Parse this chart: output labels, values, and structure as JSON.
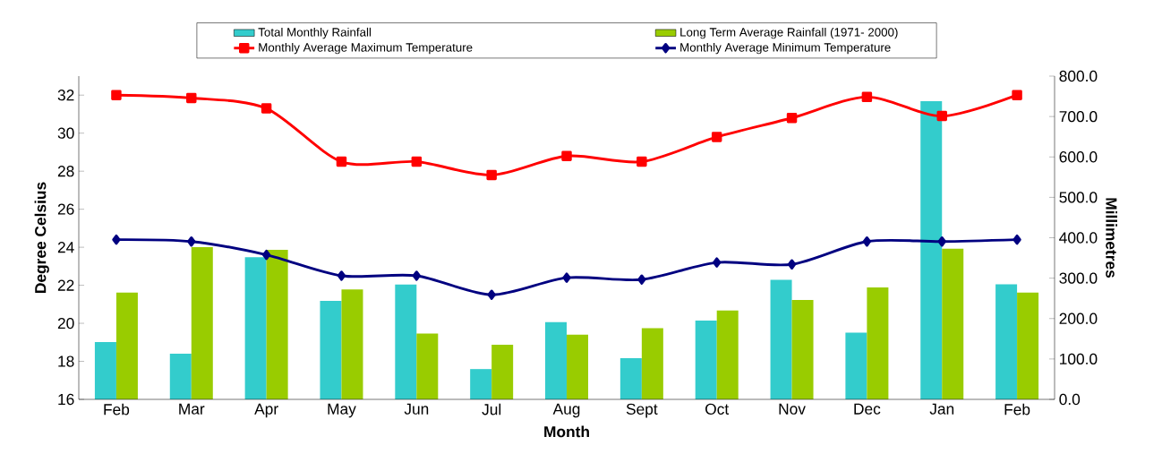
{
  "chart_data": {
    "type": "bar",
    "xlabel": "Month",
    "ylabel": "Degree Celsius",
    "y2label": "Millimetres",
    "categories": [
      "Feb",
      "Mar",
      "Apr",
      "May",
      "Jun",
      "Jul",
      "Aug",
      "Sept",
      "Oct",
      "Nov",
      "Dec",
      "Jan",
      "Feb"
    ],
    "series": [
      {
        "name": "Total Monthly Rainfall",
        "axis": "y2",
        "color": "#33cccc",
        "values": [
          142,
          113,
          352,
          244,
          284,
          75,
          191,
          102,
          195,
          296,
          165,
          738,
          285
        ]
      },
      {
        "name": "Long Term Average Rainfall (1971- 2000)",
        "axis": "y2",
        "color": "#99cc00",
        "values": [
          264,
          377,
          370,
          272,
          163,
          135,
          160,
          176,
          220,
          246,
          277,
          373,
          264
        ]
      },
      {
        "name": "Monthly Average Maximum Temperature",
        "type": "line",
        "axis": "y",
        "color": "#ff0000",
        "marker": "square",
        "values": [
          32.0,
          31.85,
          31.3,
          28.5,
          28.5,
          27.8,
          28.8,
          28.5,
          29.8,
          30.8,
          31.9,
          30.9,
          32.0
        ]
      },
      {
        "name": "Monthly Average Minimum Temperature",
        "type": "line",
        "axis": "y",
        "color": "#000080",
        "marker": "diamond",
        "values": [
          24.4,
          24.3,
          23.6,
          22.5,
          22.5,
          21.5,
          22.4,
          22.3,
          23.2,
          23.1,
          24.3,
          24.3,
          24.4
        ]
      }
    ],
    "ylim": [
      16,
      33
    ],
    "yticks": [
      16,
      18,
      20,
      22,
      24,
      26,
      28,
      30,
      32
    ],
    "y2lim": [
      0,
      800
    ],
    "y2ticks": [
      {
        "value": 0,
        "label": "0.0"
      },
      {
        "value": 100,
        "label": "100.0"
      },
      {
        "value": 200,
        "label": "200.0"
      },
      {
        "value": 300,
        "label": "300.0"
      },
      {
        "value": 400,
        "label": "400.0"
      },
      {
        "value": 500,
        "label": "500.0"
      },
      {
        "value": 600,
        "label": "600.0"
      },
      {
        "value": 700,
        "label": "700.0"
      },
      {
        "value": 800,
        "label": "800.0"
      }
    ],
    "legend": "top"
  }
}
